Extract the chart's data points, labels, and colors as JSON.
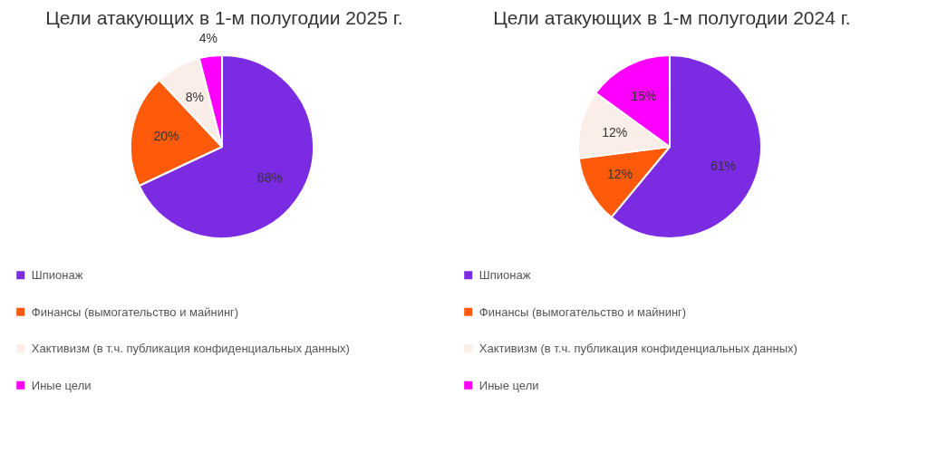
{
  "chart_data": [
    {
      "type": "pie",
      "title": "Цели атакующих в 1-м полугодии 2025 г.",
      "categories": [
        "Шпионаж",
        "Финансы (вымогательство и майнинг)",
        "Хактивизм (в т.ч. публикация конфиденциальных данных)",
        "Иные цели"
      ],
      "values": [
        68,
        20,
        8,
        4
      ],
      "value_labels": [
        "68%",
        "20%",
        "8%",
        "4%"
      ],
      "data_labels": true,
      "colors": [
        "#7b2be2",
        "#ff5a0a",
        "#fbeee8",
        "#ff00ff"
      ],
      "legend": "bottom"
    },
    {
      "type": "pie",
      "title": "Цели атакующих в 1-м полугодии 2024 г.",
      "categories": [
        "Шпионаж",
        "Финансы (вымогательство и майнинг)",
        "Хактивизм (в т.ч. публикация конфиденциальных данных)",
        "Иные цели"
      ],
      "values": [
        61,
        12,
        12,
        15
      ],
      "value_labels": [
        "61%",
        "12%",
        "12%",
        "15%"
      ],
      "data_labels": true,
      "colors": [
        "#7b2be2",
        "#ff5a0a",
        "#fbeee8",
        "#ff00ff"
      ],
      "legend": "bottom"
    }
  ]
}
